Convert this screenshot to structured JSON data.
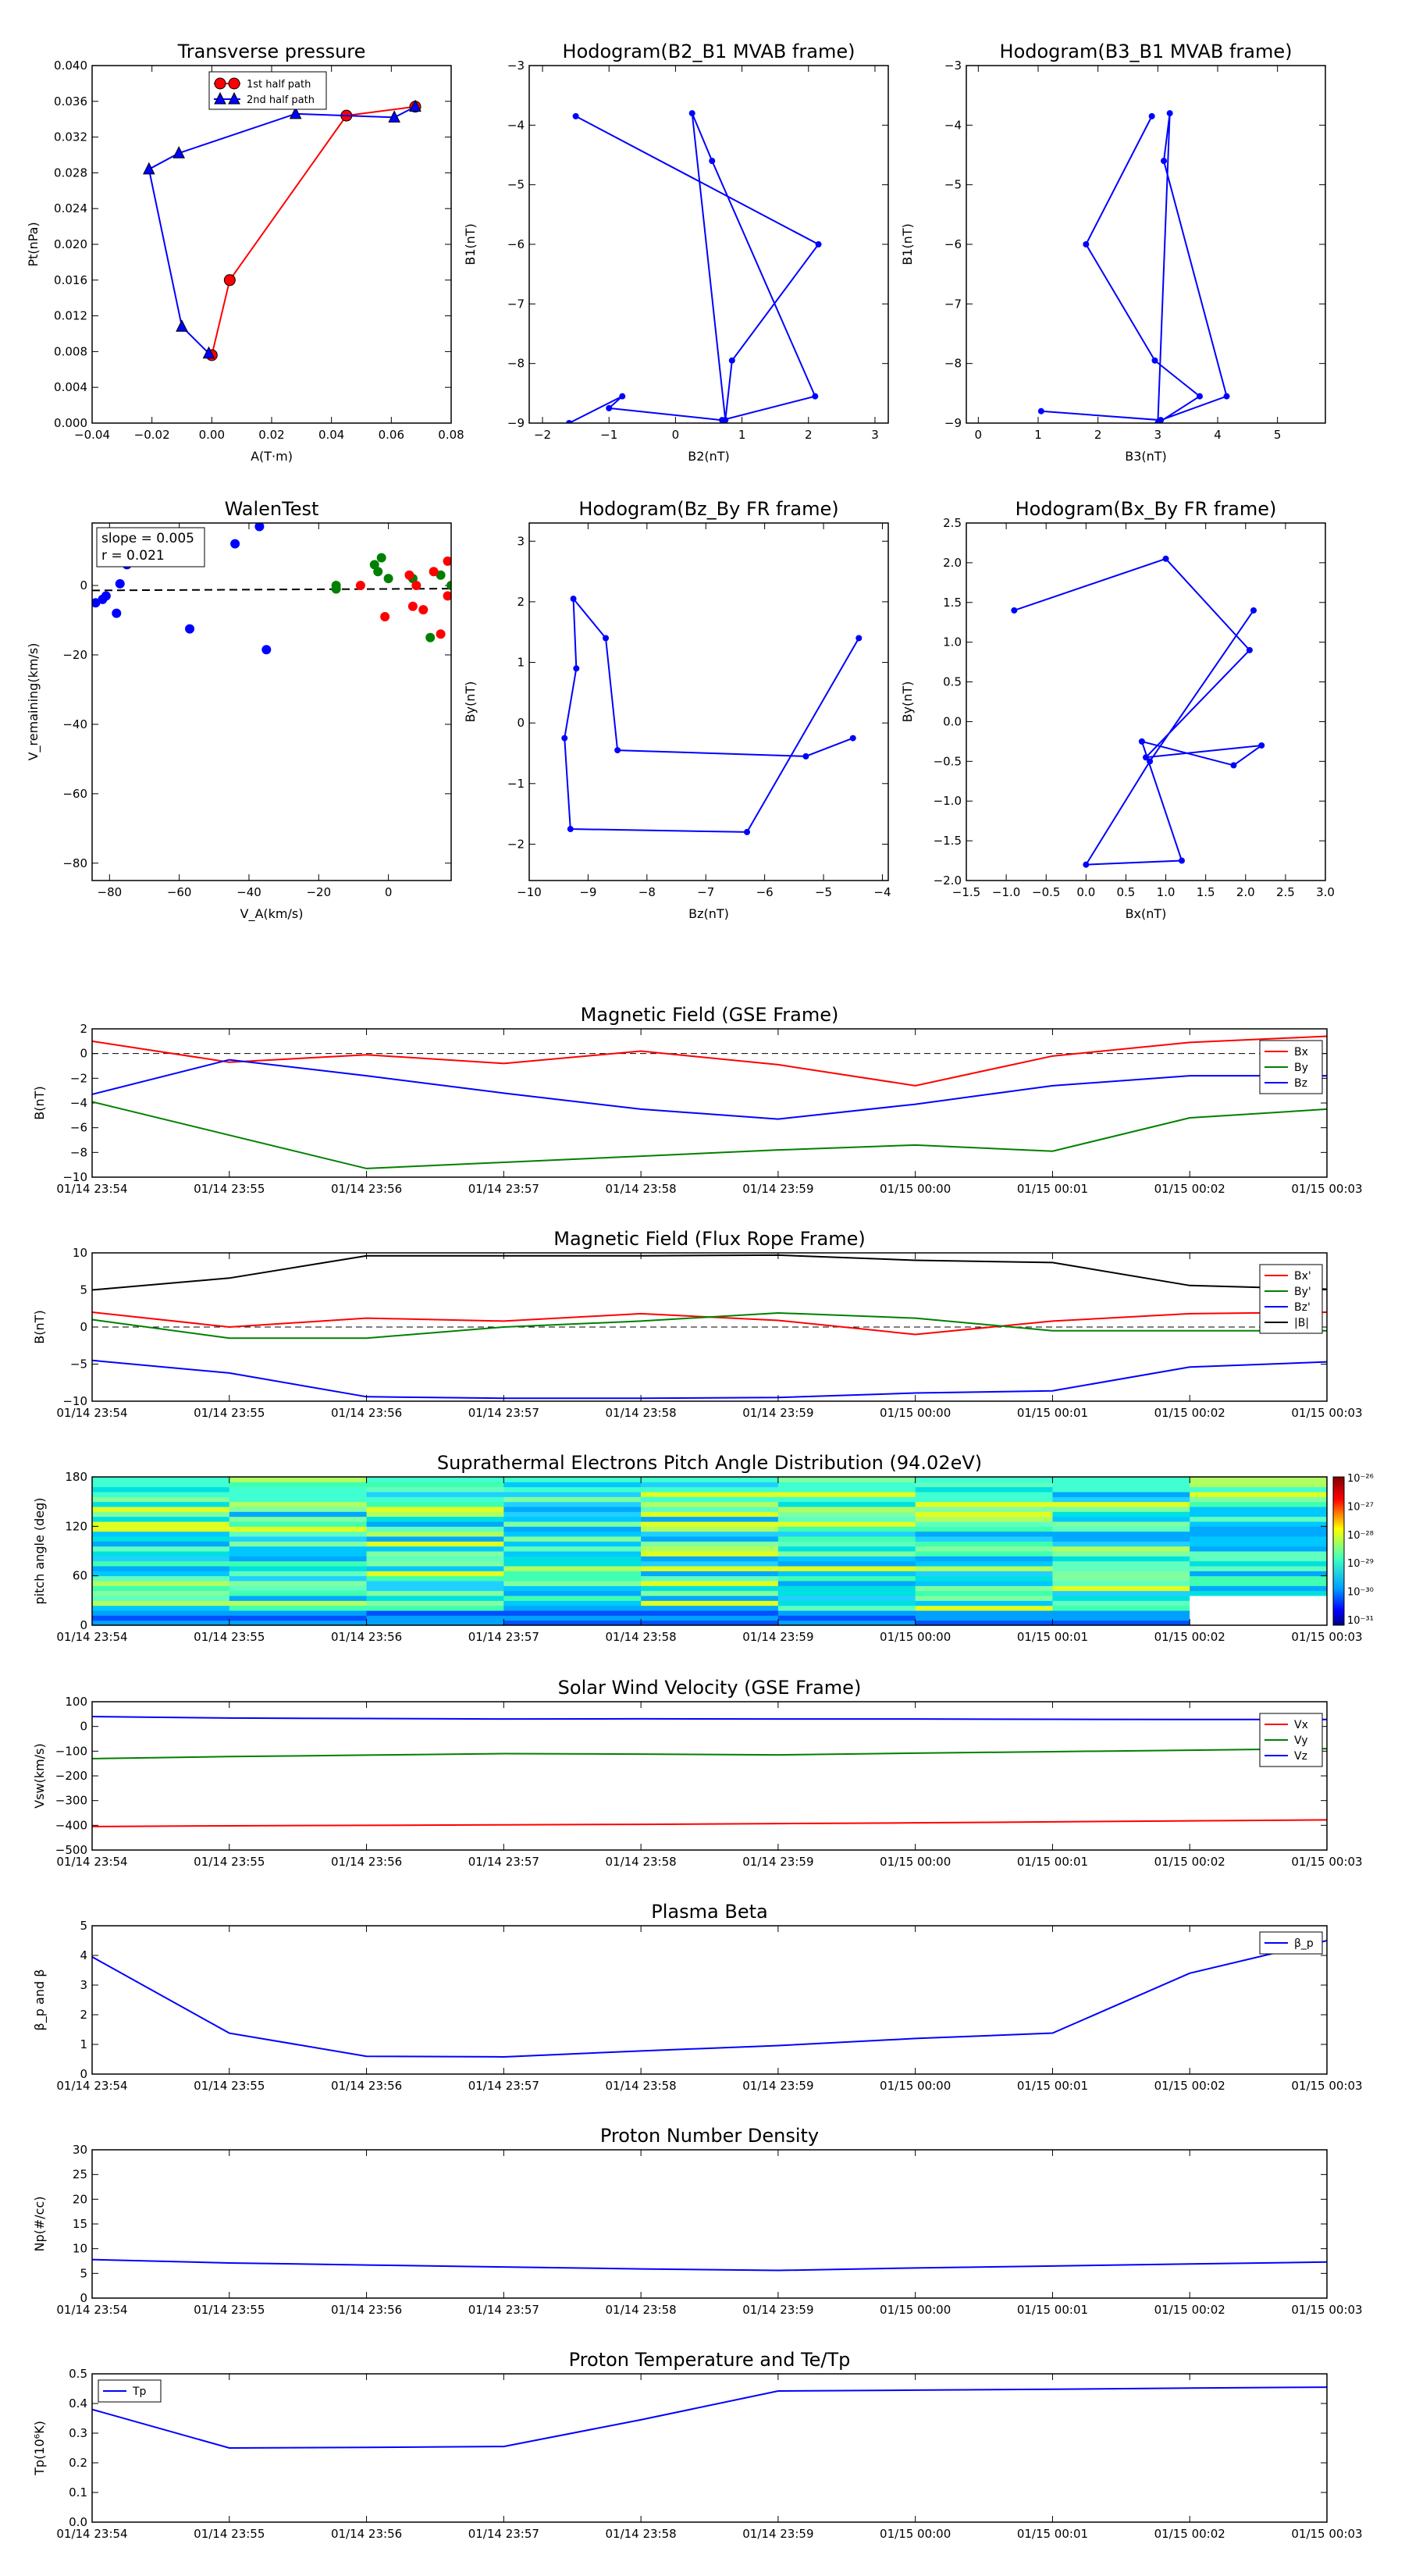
{
  "colors": {
    "red": "#ff0000",
    "green": "#008000",
    "blue": "#0000ff",
    "black": "#000000",
    "grid": "#000000"
  },
  "chart_data": [
    {
      "id": "tp",
      "type": "line",
      "title": "Transverse pressure",
      "xlabel": "A(T·m)",
      "ylabel": "Pt(nPa)",
      "xlim": [
        -0.04,
        0.08
      ],
      "ylim": [
        0,
        0.04
      ],
      "xticks": [
        "−0.04",
        "−0.02",
        "0.00",
        "0.02",
        "0.04",
        "0.06",
        "0.08"
      ],
      "yticks": [
        "0.000",
        "0.004",
        "0.008",
        "0.012",
        "0.016",
        "0.020",
        "0.024",
        "0.028",
        "0.032",
        "0.036",
        "0.040"
      ],
      "legend": {
        "placement": "upper-center",
        "entries": [
          "1st half path",
          "2nd half path"
        ]
      },
      "series": [
        {
          "name": "1st half path",
          "color": "red",
          "marker": "circle",
          "x": [
            0.0,
            0.006,
            0.045,
            0.068
          ],
          "y": [
            0.0076,
            0.016,
            0.0344,
            0.0354
          ]
        },
        {
          "name": "2nd half path",
          "color": "blue",
          "marker": "triangle",
          "x": [
            0.068,
            0.061,
            0.028,
            -0.011,
            -0.021,
            -0.01,
            -0.001
          ],
          "y": [
            0.0354,
            0.0342,
            0.0346,
            0.0302,
            0.0284,
            0.0108,
            0.0078
          ]
        }
      ]
    },
    {
      "id": "h21",
      "type": "line",
      "title": "Hodogram(B2_B1 MVAB frame)",
      "xlabel": "B2(nT)",
      "ylabel": "B1(nT)",
      "xlim": [
        -2.2,
        3.2
      ],
      "ylim": [
        -9,
        -3
      ],
      "xticks": [
        "−2",
        "−1",
        "0",
        "1",
        "2",
        "3"
      ],
      "yticks": [
        "−9",
        "−8",
        "−7",
        "−6",
        "−5",
        "−4",
        "−3"
      ],
      "series": [
        {
          "color": "blue",
          "marker": "dot",
          "x": [
            -1.5,
            2.15,
            0.85,
            0.75,
            0.25,
            0.55,
            2.1,
            0.7,
            -1.0,
            -0.8,
            -1.6
          ],
          "y": [
            -3.85,
            -6.0,
            -7.95,
            -8.95,
            -3.8,
            -4.6,
            -8.55,
            -8.95,
            -8.75,
            -8.55,
            -9.0
          ]
        }
      ]
    },
    {
      "id": "h31",
      "type": "line",
      "title": "Hodogram(B3_B1 MVAB frame)",
      "xlabel": "B3(nT)",
      "ylabel": "B1(nT)",
      "xlim": [
        -0.2,
        5.8
      ],
      "ylim": [
        -9,
        -3
      ],
      "xticks": [
        "0",
        "1",
        "2",
        "3",
        "4",
        "5"
      ],
      "yticks": [
        "−9",
        "−8",
        "−7",
        "−6",
        "−5",
        "−4",
        "−3"
      ],
      "series": [
        {
          "color": "blue",
          "marker": "dot",
          "x": [
            2.9,
            1.8,
            2.95,
            3.7,
            3.0,
            3.2,
            3.1,
            4.15,
            3.05,
            1.05
          ],
          "y": [
            -3.85,
            -6.0,
            -7.95,
            -8.55,
            -9.0,
            -3.8,
            -4.6,
            -8.55,
            -8.95,
            -8.8
          ]
        }
      ]
    },
    {
      "id": "walen",
      "type": "scatter",
      "title": "WalenTest",
      "xlabel": "V_A(km/s)",
      "ylabel": "V_remaining(km/s)",
      "xlim": [
        -85,
        18
      ],
      "ylim": [
        -85,
        18
      ],
      "xticks": [
        "−80",
        "−60",
        "−40",
        "−20",
        "0"
      ],
      "yticks": [
        "−80",
        "−60",
        "−40",
        "−20",
        "0"
      ],
      "annotation": [
        "slope = 0.005",
        "r = 0.021"
      ],
      "fit_line": {
        "slope": 0.005,
        "intercept": -1.0
      },
      "series": [
        {
          "color": "blue",
          "x": [
            -84,
            -82,
            -81,
            -78,
            -77,
            -75,
            -57,
            -55,
            -44,
            -37,
            -35
          ],
          "y": [
            -5,
            -4,
            -3,
            -8,
            0.5,
            6,
            -12.5,
            14,
            12,
            17,
            -18.5
          ]
        },
        {
          "color": "green",
          "x": [
            -15,
            -15,
            -4,
            -3,
            -2,
            0,
            7,
            12,
            15,
            18
          ],
          "y": [
            -1,
            0,
            6,
            4,
            8,
            2,
            2,
            -15,
            3,
            0
          ]
        },
        {
          "color": "red",
          "x": [
            -8,
            -1,
            6,
            7,
            8,
            10,
            13,
            15,
            17,
            17
          ],
          "y": [
            0,
            -9,
            3,
            -6,
            0,
            -7,
            4,
            -14,
            7,
            -3
          ]
        }
      ]
    },
    {
      "id": "hzy",
      "type": "line",
      "title": "Hodogram(Bz_By FR frame)",
      "xlabel": "Bz(nT)",
      "ylabel": "By(nT)",
      "xlim": [
        -10,
        -3.9
      ],
      "ylim": [
        -2.6,
        3.3
      ],
      "xticks": [
        "−10",
        "−9",
        "−8",
        "−7",
        "−6",
        "−5",
        "−4"
      ],
      "yticks": [
        "−2",
        "−1",
        "0",
        "1",
        "2",
        "3"
      ],
      "series": [
        {
          "color": "blue",
          "marker": "dot",
          "x": [
            -4.4,
            -6.3,
            -9.3,
            -9.4,
            -9.2,
            -9.25,
            -8.7,
            -8.5,
            -5.3,
            -4.5
          ],
          "y": [
            1.4,
            -1.8,
            -1.75,
            -0.25,
            0.9,
            2.05,
            1.4,
            -0.45,
            -0.55,
            -0.25
          ]
        }
      ]
    },
    {
      "id": "hxy",
      "type": "line",
      "title": "Hodogram(Bx_By FR frame)",
      "xlabel": "Bx(nT)",
      "ylabel": "By(nT)",
      "xlim": [
        -1.5,
        3.0
      ],
      "ylim": [
        -2.0,
        2.5
      ],
      "xticks": [
        "−1.5",
        "−1.0",
        "−0.5",
        "0.0",
        "0.5",
        "1.0",
        "1.5",
        "2.0",
        "2.5",
        "3.0"
      ],
      "yticks": [
        "−2.0",
        "−1.5",
        "−1.0",
        "−0.5",
        "0.0",
        "0.5",
        "1.0",
        "1.5",
        "2.0",
        "2.5"
      ],
      "series": [
        {
          "color": "blue",
          "marker": "dot",
          "x": [
            2.1,
            0.8,
            0.0,
            1.2,
            0.7,
            1.85,
            2.2,
            0.75,
            2.05,
            1.0,
            -0.9
          ],
          "y": [
            1.4,
            -0.5,
            -1.8,
            -1.75,
            -0.25,
            -0.55,
            -0.3,
            -0.45,
            0.9,
            2.05,
            1.4
          ]
        }
      ]
    },
    {
      "id": "bgse",
      "type": "line",
      "title": "Magnetic Field (GSE Frame)",
      "ylabel": "B(nT)",
      "ylim": [
        -10,
        2
      ],
      "yticks": [
        "−10",
        "−8",
        "−6",
        "−4",
        "−2",
        "0",
        "2"
      ],
      "legend": {
        "placement": "right",
        "entries": [
          "Bx",
          "By",
          "Bz"
        ]
      },
      "zero_line": true,
      "series": [
        {
          "name": "Bx",
          "color": "red",
          "values": [
            1.0,
            -0.7,
            -0.1,
            -0.8,
            0.2,
            -0.9,
            -2.6,
            -0.2,
            0.9,
            1.4
          ]
        },
        {
          "name": "By",
          "color": "green",
          "values": [
            -3.9,
            -6.6,
            -9.3,
            -8.8,
            -8.3,
            -7.8,
            -7.4,
            -7.9,
            -5.2,
            -4.5
          ]
        },
        {
          "name": "Bz",
          "color": "blue",
          "values": [
            -3.3,
            -0.5,
            -1.8,
            -3.2,
            -4.5,
            -5.3,
            -4.1,
            -2.6,
            -1.8,
            -1.8
          ]
        }
      ]
    },
    {
      "id": "bfr",
      "type": "line",
      "title": "Magnetic Field (Flux Rope Frame)",
      "ylabel": "B(nT)",
      "ylim": [
        -10,
        10
      ],
      "yticks": [
        "−10",
        "−5",
        "0",
        "5",
        "10"
      ],
      "legend": {
        "placement": "right",
        "entries": [
          "Bx'",
          "By'",
          "Bz'",
          "|B|"
        ]
      },
      "zero_line": true,
      "series": [
        {
          "name": "Bx'",
          "color": "red",
          "values": [
            2.0,
            0.0,
            1.2,
            0.8,
            1.8,
            0.9,
            -1.0,
            0.8,
            1.8,
            2.0
          ]
        },
        {
          "name": "By'",
          "color": "green",
          "values": [
            1.0,
            -1.5,
            -1.5,
            0.0,
            0.8,
            1.9,
            1.2,
            -0.5,
            -0.5,
            -0.5
          ]
        },
        {
          "name": "Bz'",
          "color": "blue",
          "values": [
            -4.5,
            -6.2,
            -9.4,
            -9.6,
            -9.6,
            -9.5,
            -8.9,
            -8.6,
            -5.4,
            -4.7
          ]
        },
        {
          "name": "|B|",
          "color": "black",
          "values": [
            5.0,
            6.6,
            9.6,
            9.6,
            9.6,
            9.7,
            9.0,
            8.7,
            5.6,
            5.1
          ]
        }
      ]
    },
    {
      "id": "pad",
      "type": "heatmap",
      "title": "Suprathermal Electrons Pitch Angle Distribution (94.02eV)",
      "ylabel": "pitch angle (deg)",
      "ylim": [
        0,
        180
      ],
      "yticks": [
        "0",
        "60",
        "120",
        "180"
      ],
      "colorbar": {
        "ticks": [
          "10⁻²⁶",
          "10⁻²⁷",
          "10⁻²⁸",
          "10⁻²⁹",
          "10⁻³⁰",
          "10⁻³¹"
        ]
      },
      "columns": 9,
      "rows": 30
    },
    {
      "id": "vsw",
      "type": "line",
      "title": "Solar Wind Velocity (GSE Frame)",
      "ylabel": "Vsw(km/s)",
      "ylim": [
        -500,
        100
      ],
      "yticks": [
        "−500",
        "−400",
        "−300",
        "−200",
        "−100",
        "0",
        "100"
      ],
      "legend": {
        "placement": "right",
        "entries": [
          "Vx",
          "Vy",
          "Vz"
        ]
      },
      "series": [
        {
          "name": "Vx",
          "color": "red",
          "values": [
            -405,
            -402,
            -400,
            -398,
            -396,
            -393,
            -390,
            -386,
            -382,
            -378
          ]
        },
        {
          "name": "Vy",
          "color": "green",
          "values": [
            -130,
            -122,
            -116,
            -110,
            -112,
            -115,
            -108,
            -102,
            -96,
            -90
          ]
        },
        {
          "name": "Vz",
          "color": "blue",
          "values": [
            40,
            34,
            32,
            30,
            31,
            30,
            30,
            29,
            28,
            28
          ]
        }
      ]
    },
    {
      "id": "beta",
      "type": "line",
      "title": "Plasma Beta",
      "ylabel": "β_p and β",
      "ylim": [
        0,
        5
      ],
      "yticks": [
        "0",
        "1",
        "2",
        "3",
        "4",
        "5"
      ],
      "legend": {
        "placement": "upper-right",
        "entries": [
          "β_p"
        ]
      },
      "series": [
        {
          "name": "β_p",
          "color": "blue",
          "values": [
            3.95,
            1.38,
            0.6,
            0.58,
            0.78,
            0.96,
            1.2,
            1.38,
            3.4,
            4.5
          ]
        }
      ]
    },
    {
      "id": "np",
      "type": "line",
      "title": "Proton Number Density",
      "ylabel": "Np(#/cc)",
      "ylim": [
        0,
        30
      ],
      "yticks": [
        "0",
        "5",
        "10",
        "15",
        "20",
        "25",
        "30"
      ],
      "series": [
        {
          "name": "Np",
          "color": "blue",
          "values": [
            7.8,
            7.1,
            6.7,
            6.3,
            5.9,
            5.6,
            6.1,
            6.5,
            6.9,
            7.3
          ]
        }
      ]
    },
    {
      "id": "tpp",
      "type": "line",
      "title": "Proton Temperature and Te/Tp",
      "ylabel": "Tp(10⁶K)",
      "ylim": [
        0,
        0.5
      ],
      "yticks": [
        "0.0",
        "0.1",
        "0.2",
        "0.3",
        "0.4",
        "0.5"
      ],
      "legend": {
        "placement": "upper-left",
        "entries": [
          "Tp"
        ]
      },
      "series": [
        {
          "name": "Tp",
          "color": "blue",
          "values": [
            0.38,
            0.25,
            0.252,
            0.255,
            0.345,
            0.442,
            0.445,
            0.448,
            0.452,
            0.455
          ]
        }
      ]
    }
  ],
  "time_ticks": [
    "01/14 23:54",
    "01/14 23:55",
    "01/14 23:56",
    "01/14 23:57",
    "01/14 23:58",
    "01/14 23:59",
    "01/15 00:00",
    "01/15 00:01",
    "01/15 00:02",
    "01/15 00:03"
  ]
}
